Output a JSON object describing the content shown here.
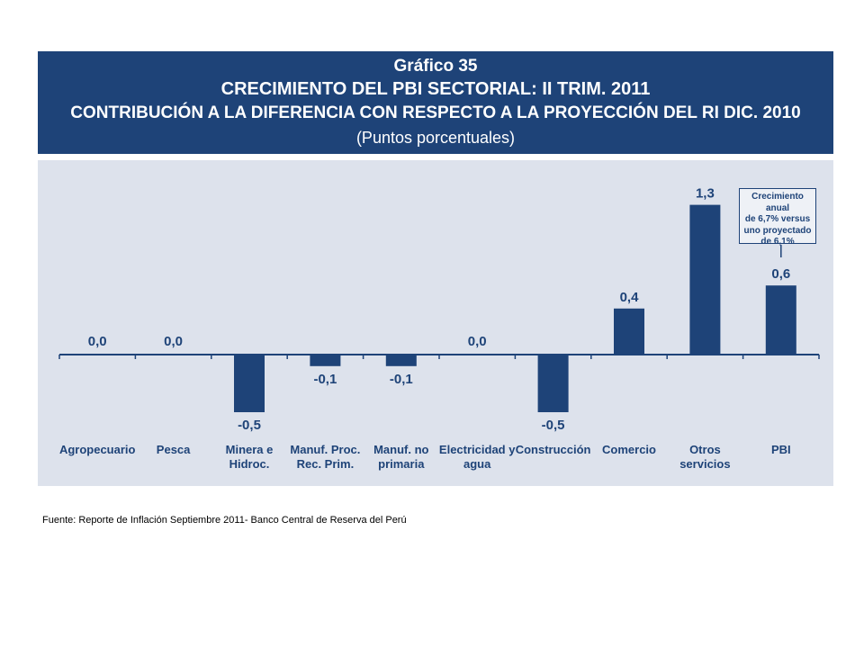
{
  "header": {
    "chart_number": "Gráfico 35",
    "title_line1": "CRECIMIENTO DEL PBI SECTORIAL: II TRIM. 2011",
    "title_line2": "CONTRIBUCIÓN A LA DIFERENCIA CON RESPECTO A LA PROYECCIÓN DEL RI DIC. 2010",
    "subtitle": "(Puntos porcentuales)"
  },
  "annotation": {
    "lines": [
      "Crecimiento anual",
      "de 6,7% versus",
      "uno proyectado",
      "de 6,1%"
    ]
  },
  "source": "Fuente: Reporte de Inflación Septiembre 2011- Banco Central de Reserva del Perú",
  "colors": {
    "header_bg": "#1e4378",
    "plot_bg": "#dde2ec",
    "bar": "#1e4378",
    "text": "#1e4378"
  },
  "chart_data": {
    "type": "bar",
    "categories": [
      [
        "Agropecuario"
      ],
      [
        "Pesca"
      ],
      [
        "Minera e",
        "Hidroc."
      ],
      [
        "Manuf. Proc.",
        "Rec. Prim."
      ],
      [
        "Manuf. no",
        "primaria"
      ],
      [
        "Electricidad y",
        "agua"
      ],
      [
        "Construcción"
      ],
      [
        "Comercio"
      ],
      [
        "Otros",
        "servicios"
      ],
      [
        "PBI"
      ]
    ],
    "values": [
      0.0,
      0.0,
      -0.5,
      -0.1,
      -0.1,
      0.0,
      -0.5,
      0.4,
      1.3,
      0.6
    ],
    "value_labels": [
      "0,0",
      "0,0",
      "-0,5",
      "-0,1",
      "-0,1",
      "0,0",
      "-0,5",
      "0,4",
      "1,3",
      "0,6"
    ],
    "title": "CRECIMIENTO DEL PBI SECTORIAL: II TRIM. 2011",
    "xlabel": "",
    "ylabel": "",
    "grid": false,
    "annotation_target": "PBI"
  }
}
